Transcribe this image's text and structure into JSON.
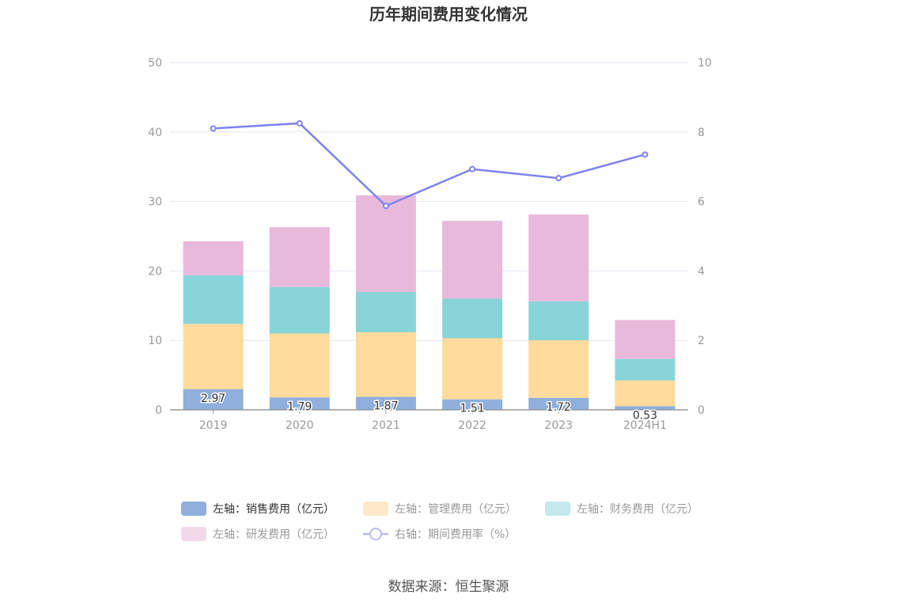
{
  "chart_data": {
    "type": "bar",
    "title": "历年期间费用变化情况",
    "categories": [
      "2019",
      "2020",
      "2021",
      "2022",
      "2023",
      "2024H1"
    ],
    "left_axis": {
      "min": 0,
      "max": 50,
      "ticks": [
        "0",
        "10",
        "20",
        "30",
        "40",
        "50"
      ]
    },
    "right_axis": {
      "min": 0,
      "max": 10,
      "ticks": [
        "0",
        "2",
        "4",
        "6",
        "8",
        "10"
      ]
    },
    "series": [
      {
        "name": "左轴：销售费用（亿元）",
        "type": "bar",
        "stack": true,
        "axis": "left",
        "color": "#8fafdc",
        "values": [
          2.97,
          1.79,
          1.87,
          1.51,
          1.72,
          0.53
        ],
        "labels": [
          "2.97",
          "1.79",
          "1.87",
          "1.51",
          "1.72",
          "0.53"
        ]
      },
      {
        "name": "左轴：管理费用（亿元）",
        "type": "bar",
        "stack": true,
        "axis": "left",
        "color": "#fedb9c",
        "values": [
          9.4,
          9.2,
          9.3,
          8.8,
          8.3,
          3.7
        ]
      },
      {
        "name": "左轴：财务费用（亿元）",
        "type": "bar",
        "stack": true,
        "axis": "left",
        "color": "#88d4d8",
        "values": [
          7.0,
          6.7,
          5.8,
          5.7,
          5.6,
          3.1
        ]
      },
      {
        "name": "左轴：研发费用（亿元）",
        "type": "bar",
        "stack": true,
        "axis": "left",
        "color": "#e8b9da",
        "values": [
          4.9,
          8.6,
          13.9,
          11.2,
          12.5,
          5.6
        ]
      },
      {
        "name": "右轴：期间费用率（%）",
        "type": "line",
        "axis": "right",
        "color": "#7f82ee",
        "values": [
          8.1,
          8.25,
          5.87,
          6.93,
          6.67,
          7.35
        ]
      }
    ],
    "legend_position": "bottom",
    "grid": true
  },
  "legend": {
    "items": [
      {
        "label": "左轴：销售费用（亿元）",
        "swatch": "#8fafdc",
        "kind": "bar",
        "active": true
      },
      {
        "label": "左轴：管理费用（亿元）",
        "swatch": "#fde9c9",
        "kind": "bar",
        "active": false
      },
      {
        "label": "左轴：财务费用（亿元）",
        "swatch": "#c3e9eb",
        "kind": "bar",
        "active": false
      },
      {
        "label": "左轴：研发费用（亿元）",
        "swatch": "#f3d8ea",
        "kind": "bar",
        "active": false
      },
      {
        "label": "右轴：期间费用率（%）",
        "swatch": "#b9baf5",
        "kind": "line",
        "active": false
      }
    ]
  },
  "source": "数据来源：恒生聚源"
}
